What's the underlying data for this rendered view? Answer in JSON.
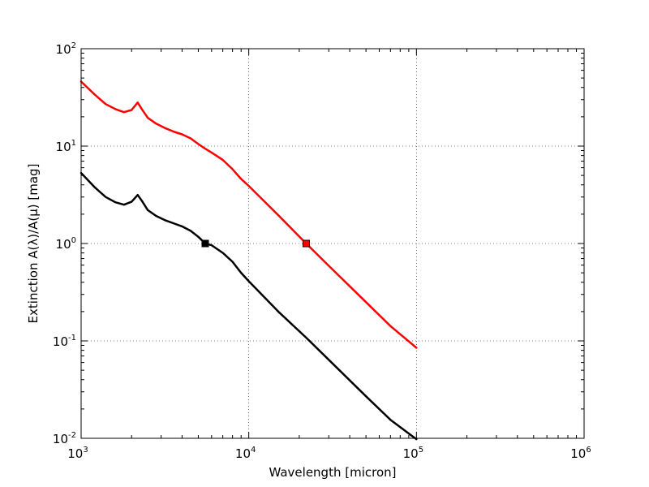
{
  "chart_data": {
    "type": "line",
    "xlabel": "Wavelength [micron]",
    "ylabel": "Extinction A(λ)/A(μ) [mag]",
    "xscale": "log",
    "yscale": "log",
    "xlim": [
      1000,
      1000000
    ],
    "ylim": [
      0.01,
      100
    ],
    "grid": true,
    "x_ticks": [
      {
        "base": "10",
        "exp": "3"
      },
      {
        "base": "10",
        "exp": "4"
      },
      {
        "base": "10",
        "exp": "5"
      },
      {
        "base": "10",
        "exp": "6"
      }
    ],
    "y_ticks": [
      {
        "base": "10",
        "exp": "-2"
      },
      {
        "base": "10",
        "exp": "-1"
      },
      {
        "base": "10",
        "exp": "0"
      },
      {
        "base": "10",
        "exp": "1"
      },
      {
        "base": "10",
        "exp": "2"
      }
    ],
    "series": [
      {
        "color": "#ff0000",
        "x": [
          1000,
          1200,
          1400,
          1600,
          1800,
          2000,
          2175,
          2300,
          2500,
          2800,
          3200,
          3600,
          4000,
          4500,
          5000,
          5500,
          6000,
          7000,
          8000,
          9000,
          10000,
          15000,
          22000,
          30000,
          50000,
          70000,
          100000
        ],
        "y": [
          46,
          34,
          27,
          24,
          22.3,
          23.5,
          28,
          24,
          19.5,
          17,
          15.2,
          14,
          13.2,
          12,
          10.5,
          9.4,
          8.6,
          7.2,
          5.8,
          4.6,
          3.9,
          1.95,
          1.0,
          0.59,
          0.25,
          0.142,
          0.085
        ],
        "markers": [
          {
            "x": 22000,
            "y": 1.0
          }
        ]
      },
      {
        "color": "#000000",
        "x": [
          1000,
          1200,
          1400,
          1600,
          1800,
          2000,
          2175,
          2300,
          2500,
          2800,
          3200,
          3600,
          4000,
          4500,
          5000,
          5500,
          6000,
          7000,
          8000,
          9000,
          10000,
          15000,
          22000,
          30000,
          50000,
          70000,
          100000
        ],
        "y": [
          5.3,
          3.8,
          3.0,
          2.65,
          2.5,
          2.68,
          3.15,
          2.75,
          2.2,
          1.92,
          1.72,
          1.6,
          1.5,
          1.35,
          1.17,
          1.0,
          0.96,
          0.8,
          0.65,
          0.5,
          0.41,
          0.2,
          0.108,
          0.064,
          0.027,
          0.0155,
          0.0098
        ],
        "markers": [
          {
            "x": 5500,
            "y": 1.0
          }
        ]
      }
    ]
  }
}
